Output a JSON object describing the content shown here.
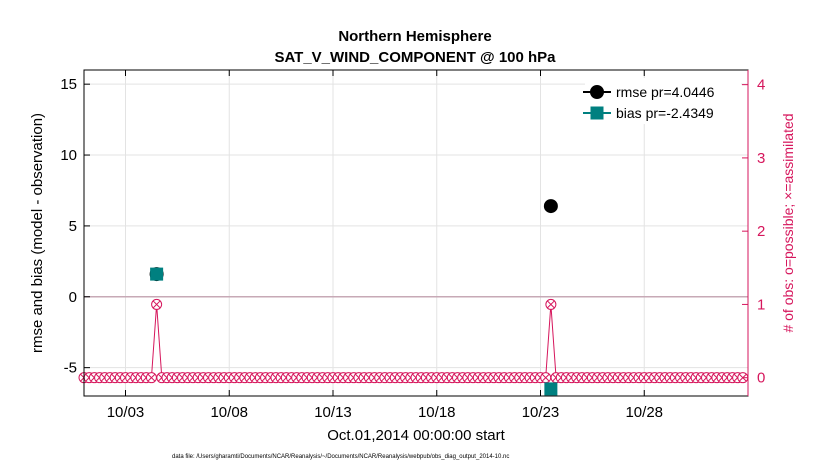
{
  "chart_data": {
    "type": "scatter",
    "title": "Northern Hemisphere",
    "subtitle": "SAT_V_WIND_COMPONENT @ 100 hPa",
    "xlabel": "Oct.01,2014 00:00:00 start",
    "ylabel": "rmse and bias (model - observation)",
    "ylabel_right": "# of obs: o=possible; ×=assimilated",
    "footnote": "data file: /Users/gharamti/Documents/NCAR/Reanalysis/~/Documents/NCAR/Reanalysis/webpub/obs_diag_output_2014-10.nc",
    "xlim": [
      0,
      32
    ],
    "ylim": [
      -7,
      16
    ],
    "ylim_right": [
      -0.25,
      4.2
    ],
    "x_ticks": [
      2,
      7,
      12,
      17,
      22,
      27
    ],
    "x_tick_labels": [
      "10/03",
      "10/08",
      "10/13",
      "10/18",
      "10/23",
      "10/28"
    ],
    "y_ticks": [
      -5,
      0,
      5,
      10,
      15
    ],
    "y_tick_labels": [
      "-5",
      "0",
      "5",
      "10",
      "15"
    ],
    "y_right_ticks": [
      0,
      1,
      2,
      3,
      4
    ],
    "y_right_tick_labels": [
      "0",
      "1",
      "2",
      "3",
      "4"
    ],
    "grid": true,
    "legend_position": "top-right",
    "series": [
      {
        "name": "rmse pr=4.0446",
        "color": "#000000",
        "marker": "circle",
        "x": [
          3.5,
          22.5
        ],
        "y": [
          1.6,
          6.4
        ]
      },
      {
        "name": "bias pr=-2.4349",
        "color": "#008080",
        "marker": "square",
        "x": [
          3.5,
          22.5
        ],
        "y": [
          1.6,
          -6.5
        ]
      }
    ],
    "obs_counts": {
      "color": "#d6165c",
      "x_start": 0.0,
      "x_step": 0.25,
      "n": 128,
      "nonzero": [
        {
          "x": 3.5,
          "count": 1
        },
        {
          "x": 22.5,
          "count": 1
        }
      ]
    }
  }
}
